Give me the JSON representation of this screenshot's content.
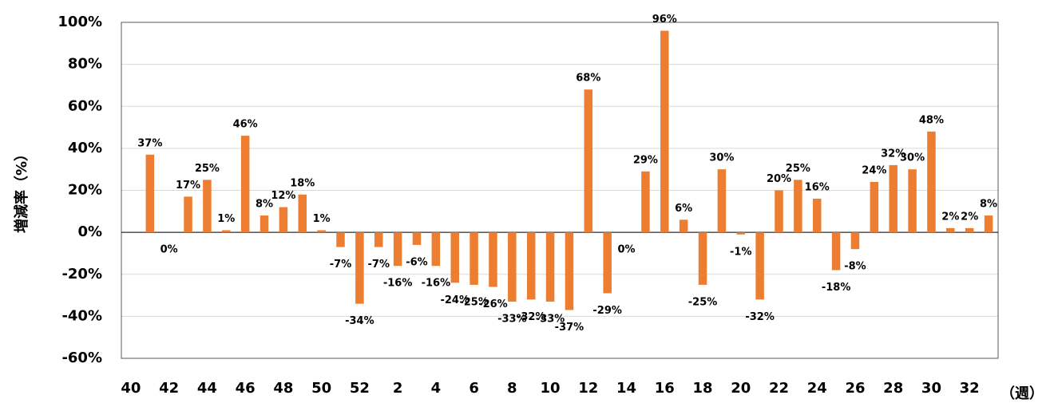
{
  "chart_data": {
    "type": "bar",
    "y_label": "増減率（%）",
    "x_label": "（週）",
    "categories": [
      "40",
      null,
      "42",
      null,
      "44",
      null,
      "46",
      null,
      "48",
      null,
      "50",
      null,
      "52",
      null,
      "2",
      null,
      "4",
      null,
      "6",
      null,
      "8",
      null,
      "10",
      null,
      "12",
      null,
      "14",
      null,
      "16",
      null,
      "18",
      null,
      "20",
      null,
      "22",
      null,
      "24",
      null,
      "26",
      null,
      "28",
      null,
      "30",
      null,
      "32",
      null
    ],
    "values": [
      null,
      37,
      0,
      17,
      25,
      1,
      46,
      8,
      12,
      18,
      1,
      -7,
      -34,
      -7,
      -16,
      -6,
      -16,
      -24,
      -25,
      -26,
      -33,
      -32,
      -33,
      -37,
      68,
      -29,
      0,
      29,
      96,
      6,
      -25,
      30,
      -1,
      -32,
      20,
      25,
      16,
      -18,
      -8,
      24,
      32,
      30,
      48,
      2,
      2,
      8
    ],
    "value_labels": [
      null,
      "37%",
      "0%",
      "17%",
      "25%",
      "1%",
      "46%",
      "8%",
      "12%",
      "18%",
      "1%",
      "-7%",
      "-34%",
      "-7%",
      "-16%",
      "-6%",
      "-16%",
      "-24%",
      "-25%",
      "-26%",
      "-33%",
      "-32%",
      "-33%",
      "-37%",
      "68%",
      "-29%",
      "0%",
      "29%",
      "96%",
      "6%",
      "-25%",
      "30%",
      "-1%",
      "-32%",
      "20%",
      "25%",
      "16%",
      "-18%",
      "-8%",
      "24%",
      "32%",
      "30%",
      "48%",
      "2%",
      "2%",
      "8%"
    ],
    "color": "#ed7d31",
    "ylim": [
      -60,
      100
    ],
    "yticks": [
      {
        "value": -60,
        "label": "-60%"
      },
      {
        "value": -40,
        "label": "-40%"
      },
      {
        "value": -20,
        "label": "-20%"
      },
      {
        "value": 0,
        "label": "0%"
      },
      {
        "value": 20,
        "label": "20%"
      },
      {
        "value": 40,
        "label": "40%"
      },
      {
        "value": 60,
        "label": "60%"
      },
      {
        "value": 80,
        "label": "80%"
      },
      {
        "value": 100,
        "label": "100%"
      }
    ],
    "grid": true
  }
}
